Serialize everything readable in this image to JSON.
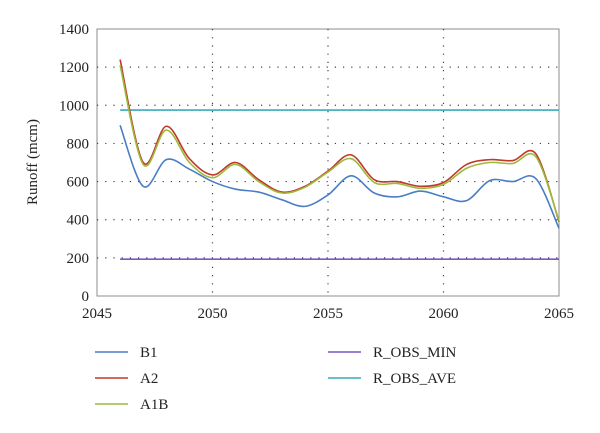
{
  "chart_data": {
    "type": "line",
    "title": "",
    "xlabel": "",
    "ylabel": "Runoff (mcm)",
    "xlim": [
      2045,
      2065
    ],
    "ylim": [
      0,
      1400
    ],
    "xticks": [
      2045,
      2050,
      2055,
      2060,
      2065
    ],
    "yticks": [
      0,
      200,
      400,
      600,
      800,
      1000,
      1200,
      1400
    ],
    "grid": "dotted",
    "legend_position": "bottom",
    "x": [
      2046,
      2047,
      2048,
      2049,
      2050,
      2051,
      2052,
      2053,
      2054,
      2055,
      2056,
      2057,
      2058,
      2059,
      2060,
      2061,
      2062,
      2063,
      2064,
      2065
    ],
    "series": [
      {
        "name": "B1",
        "color": "#4a7ec4",
        "values": [
          895,
          575,
          715,
          665,
          600,
          560,
          545,
          505,
          470,
          530,
          630,
          540,
          520,
          550,
          520,
          500,
          605,
          600,
          615,
          355
        ]
      },
      {
        "name": "A2",
        "color": "#c0392b",
        "values": [
          1240,
          700,
          890,
          720,
          635,
          700,
          610,
          545,
          575,
          655,
          740,
          610,
          600,
          575,
          595,
          690,
          715,
          710,
          745,
          390
        ]
      },
      {
        "name": "A1B",
        "color": "#9bbb3b",
        "values": [
          1210,
          690,
          870,
          700,
          620,
          690,
          600,
          540,
          570,
          650,
          720,
          595,
          590,
          565,
          585,
          670,
          700,
          695,
          730,
          395
        ]
      },
      {
        "name": "R_OBS_MIN",
        "color": "#7b57c6",
        "values": [
          193,
          193,
          193,
          193,
          193,
          193,
          193,
          193,
          193,
          193,
          193,
          193,
          193,
          193,
          193,
          193,
          193,
          193,
          193,
          193
        ]
      },
      {
        "name": "R_OBS_AVE",
        "color": "#3aa9b9",
        "values": [
          975,
          975,
          975,
          975,
          975,
          975,
          975,
          975,
          975,
          975,
          975,
          975,
          975,
          975,
          975,
          975,
          975,
          975,
          975,
          975
        ]
      }
    ],
    "legend_layout": [
      [
        "B1",
        "R_OBS_MIN"
      ],
      [
        "A2",
        "R_OBS_AVE"
      ],
      [
        "A1B"
      ]
    ]
  }
}
